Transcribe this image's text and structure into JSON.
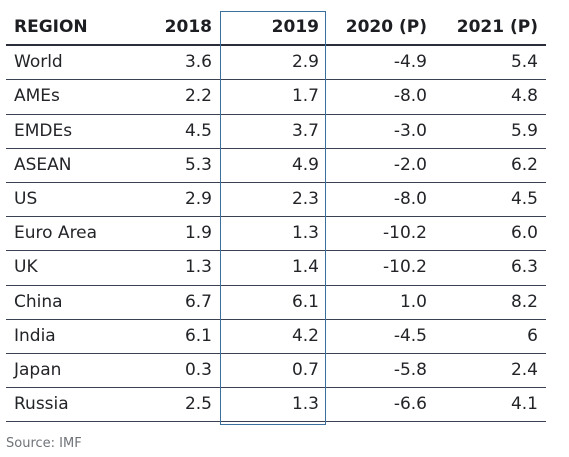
{
  "chart_data": {
    "type": "table",
    "columns": [
      "REGION",
      "2018",
      "2019",
      "2020 (P)",
      "2021 (P)"
    ],
    "rows": [
      [
        "World",
        "3.6",
        "2.9",
        "-4.9",
        "5.4"
      ],
      [
        "AMEs",
        "2.2",
        "1.7",
        "-8.0",
        "4.8"
      ],
      [
        "EMDEs",
        "4.5",
        "3.7",
        "-3.0",
        "5.9"
      ],
      [
        "ASEAN",
        "5.3",
        "4.9",
        "-2.0",
        "6.2"
      ],
      [
        "US",
        "2.9",
        "2.3",
        "-8.0",
        "4.5"
      ],
      [
        "Euro Area",
        "1.9",
        "1.3",
        "-10.2",
        "6.0"
      ],
      [
        "UK",
        "1.3",
        "1.4",
        "-10.2",
        "6.3"
      ],
      [
        "China",
        "6.7",
        "6.1",
        "1.0",
        "8.2"
      ],
      [
        "India",
        "6.1",
        "4.2",
        "-4.5",
        "6"
      ],
      [
        "Japan",
        "0.3",
        "0.7",
        "-5.8",
        "2.4"
      ],
      [
        "Russia",
        "2.5",
        "1.3",
        "-6.6",
        "4.1"
      ]
    ],
    "highlighted_column": "2019",
    "source": "Source: IMF"
  },
  "colors": {
    "text": "#222428",
    "header_text": "#1c1e22",
    "row_rule": "#3a4150",
    "highlight_border": "#3a6f9e",
    "source_text": "#6f7378"
  }
}
